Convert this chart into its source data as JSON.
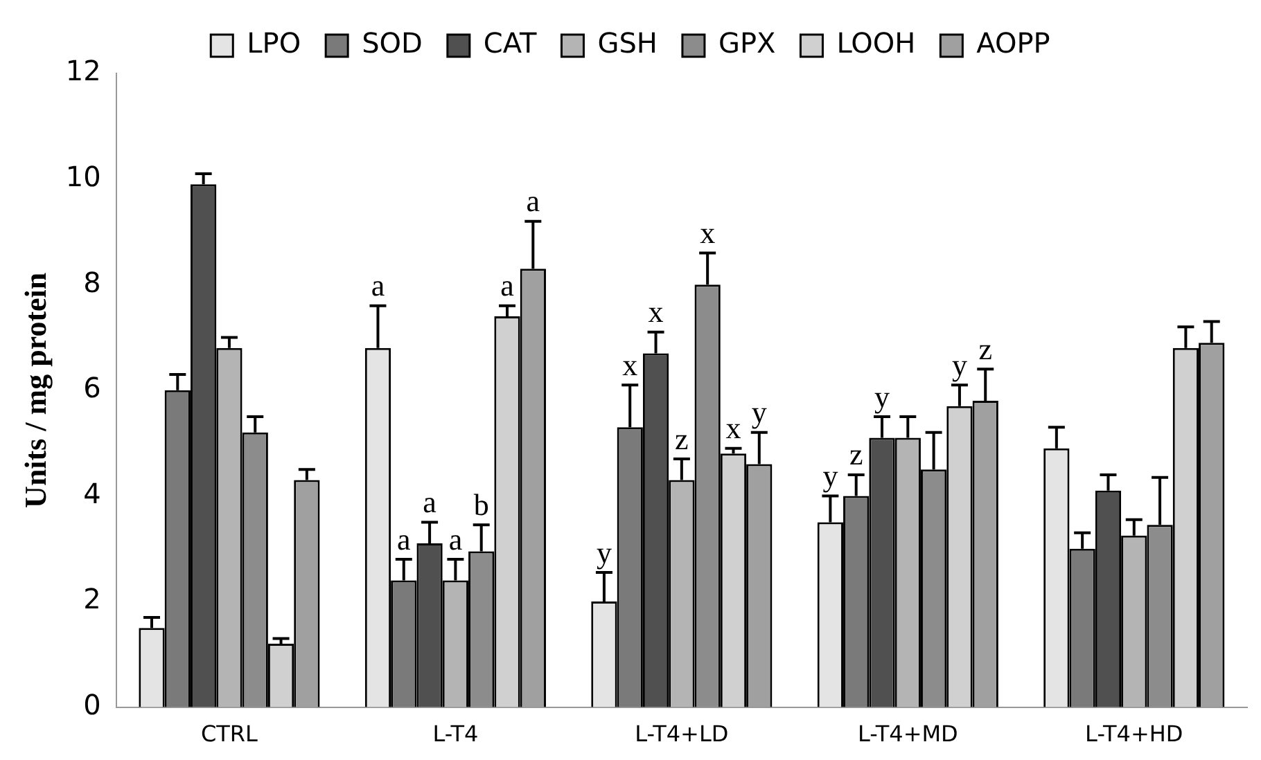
{
  "chart_data": {
    "type": "bar",
    "ylabel": "Units / mg protein",
    "categories": [
      "CTRL",
      "L-T4",
      "L-T4+LD",
      "L-T4+MD",
      "L-T4+HD"
    ],
    "series": [
      {
        "name": "LPO",
        "color": "#e4e4e4",
        "values": [
          1.5,
          6.8,
          2.0,
          3.5,
          4.9
        ],
        "errors": [
          0.2,
          0.8,
          0.55,
          0.5,
          0.4
        ],
        "value_labels": [
          null,
          "a",
          "y",
          "y",
          null
        ]
      },
      {
        "name": "SOD",
        "color": "#7a7a7a",
        "values": [
          6.0,
          2.4,
          5.3,
          4.0,
          3.0
        ],
        "errors": [
          0.3,
          0.4,
          0.8,
          0.4,
          0.3
        ],
        "value_labels": [
          null,
          "a",
          "x",
          "z",
          null
        ]
      },
      {
        "name": "CAT",
        "color": "#505050",
        "values": [
          9.9,
          3.1,
          6.7,
          5.1,
          4.1
        ],
        "errors": [
          0.2,
          0.4,
          0.4,
          0.4,
          0.3
        ],
        "value_labels": [
          null,
          "a",
          "x",
          "y",
          null
        ]
      },
      {
        "name": "GSH",
        "color": "#b4b4b4",
        "values": [
          6.8,
          2.4,
          4.3,
          5.1,
          3.25
        ],
        "errors": [
          0.2,
          0.4,
          0.4,
          0.4,
          0.3
        ],
        "value_labels": [
          null,
          "a",
          "z",
          null,
          null
        ]
      },
      {
        "name": "GPX",
        "color": "#8c8c8c",
        "values": [
          5.2,
          2.95,
          8.0,
          4.5,
          3.45
        ],
        "errors": [
          0.3,
          0.5,
          0.6,
          0.7,
          0.9
        ],
        "value_labels": [
          null,
          "b",
          "x",
          null,
          null
        ]
      },
      {
        "name": "LOOH",
        "color": "#d0d0d0",
        "values": [
          1.2,
          7.4,
          4.8,
          5.7,
          6.8
        ],
        "errors": [
          0.1,
          0.2,
          0.1,
          0.4,
          0.4
        ],
        "value_labels": [
          null,
          "a",
          "x",
          "y",
          null
        ]
      },
      {
        "name": "AOPP",
        "color": "#a0a0a0",
        "values": [
          4.3,
          8.3,
          4.6,
          5.8,
          6.9
        ],
        "errors": [
          0.2,
          0.9,
          0.6,
          0.6,
          0.4
        ],
        "value_labels": [
          null,
          "a",
          "y",
          "z",
          null
        ]
      }
    ],
    "ylim": [
      0,
      12
    ],
    "yticks": [
      0,
      2,
      4,
      6,
      8,
      10,
      12
    ],
    "grid": false,
    "legend": "top"
  }
}
